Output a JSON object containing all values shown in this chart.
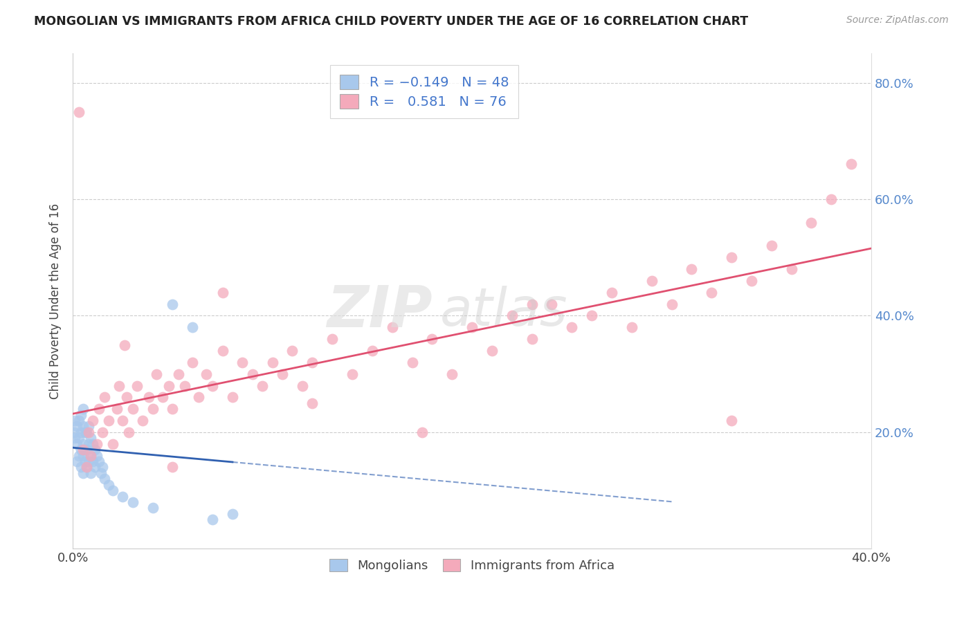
{
  "title": "MONGOLIAN VS IMMIGRANTS FROM AFRICA CHILD POVERTY UNDER THE AGE OF 16 CORRELATION CHART",
  "source": "Source: ZipAtlas.com",
  "ylabel": "Child Poverty Under the Age of 16",
  "xlim": [
    0.0,
    0.4
  ],
  "ylim": [
    0.0,
    0.85
  ],
  "mongolian_R": -0.149,
  "mongolian_N": 48,
  "africa_R": 0.581,
  "africa_N": 76,
  "mongolian_color": "#A8C8EC",
  "africa_color": "#F4AABB",
  "mongolian_line_color": "#3060B0",
  "africa_line_color": "#E05070",
  "dashed_line_color": "#BBBBBB",
  "background_color": "#FFFFFF",
  "mongolian_x": [
    0.0005,
    0.001,
    0.001,
    0.002,
    0.002,
    0.002,
    0.003,
    0.003,
    0.003,
    0.004,
    0.004,
    0.004,
    0.004,
    0.005,
    0.005,
    0.005,
    0.005,
    0.005,
    0.006,
    0.006,
    0.006,
    0.007,
    0.007,
    0.007,
    0.008,
    0.008,
    0.008,
    0.009,
    0.009,
    0.009,
    0.01,
    0.01,
    0.011,
    0.011,
    0.012,
    0.013,
    0.014,
    0.015,
    0.016,
    0.018,
    0.02,
    0.025,
    0.03,
    0.04,
    0.05,
    0.06,
    0.07,
    0.08
  ],
  "mongolian_y": [
    0.2,
    0.19,
    0.22,
    0.15,
    0.18,
    0.21,
    0.16,
    0.19,
    0.22,
    0.14,
    0.17,
    0.2,
    0.23,
    0.13,
    0.16,
    0.18,
    0.21,
    0.24,
    0.15,
    0.17,
    0.2,
    0.14,
    0.17,
    0.2,
    0.15,
    0.18,
    0.21,
    0.13,
    0.16,
    0.19,
    0.15,
    0.18,
    0.14,
    0.17,
    0.16,
    0.15,
    0.13,
    0.14,
    0.12,
    0.11,
    0.1,
    0.09,
    0.08,
    0.07,
    0.42,
    0.38,
    0.05,
    0.06
  ],
  "africa_x": [
    0.003,
    0.005,
    0.007,
    0.008,
    0.009,
    0.01,
    0.012,
    0.013,
    0.015,
    0.016,
    0.018,
    0.02,
    0.022,
    0.023,
    0.025,
    0.027,
    0.028,
    0.03,
    0.032,
    0.035,
    0.038,
    0.04,
    0.042,
    0.045,
    0.048,
    0.05,
    0.053,
    0.056,
    0.06,
    0.063,
    0.067,
    0.07,
    0.075,
    0.08,
    0.085,
    0.09,
    0.095,
    0.1,
    0.105,
    0.11,
    0.115,
    0.12,
    0.13,
    0.14,
    0.15,
    0.16,
    0.17,
    0.18,
    0.19,
    0.2,
    0.21,
    0.22,
    0.23,
    0.24,
    0.25,
    0.26,
    0.27,
    0.28,
    0.29,
    0.3,
    0.31,
    0.32,
    0.33,
    0.34,
    0.35,
    0.36,
    0.37,
    0.38,
    0.39,
    0.026,
    0.05,
    0.075,
    0.12,
    0.175,
    0.23,
    0.33
  ],
  "africa_y": [
    0.75,
    0.17,
    0.14,
    0.2,
    0.16,
    0.22,
    0.18,
    0.24,
    0.2,
    0.26,
    0.22,
    0.18,
    0.24,
    0.28,
    0.22,
    0.26,
    0.2,
    0.24,
    0.28,
    0.22,
    0.26,
    0.24,
    0.3,
    0.26,
    0.28,
    0.24,
    0.3,
    0.28,
    0.32,
    0.26,
    0.3,
    0.28,
    0.34,
    0.26,
    0.32,
    0.3,
    0.28,
    0.32,
    0.3,
    0.34,
    0.28,
    0.32,
    0.36,
    0.3,
    0.34,
    0.38,
    0.32,
    0.36,
    0.3,
    0.38,
    0.34,
    0.4,
    0.36,
    0.42,
    0.38,
    0.4,
    0.44,
    0.38,
    0.46,
    0.42,
    0.48,
    0.44,
    0.5,
    0.46,
    0.52,
    0.48,
    0.56,
    0.6,
    0.66,
    0.35,
    0.14,
    0.44,
    0.25,
    0.2,
    0.42,
    0.22
  ]
}
